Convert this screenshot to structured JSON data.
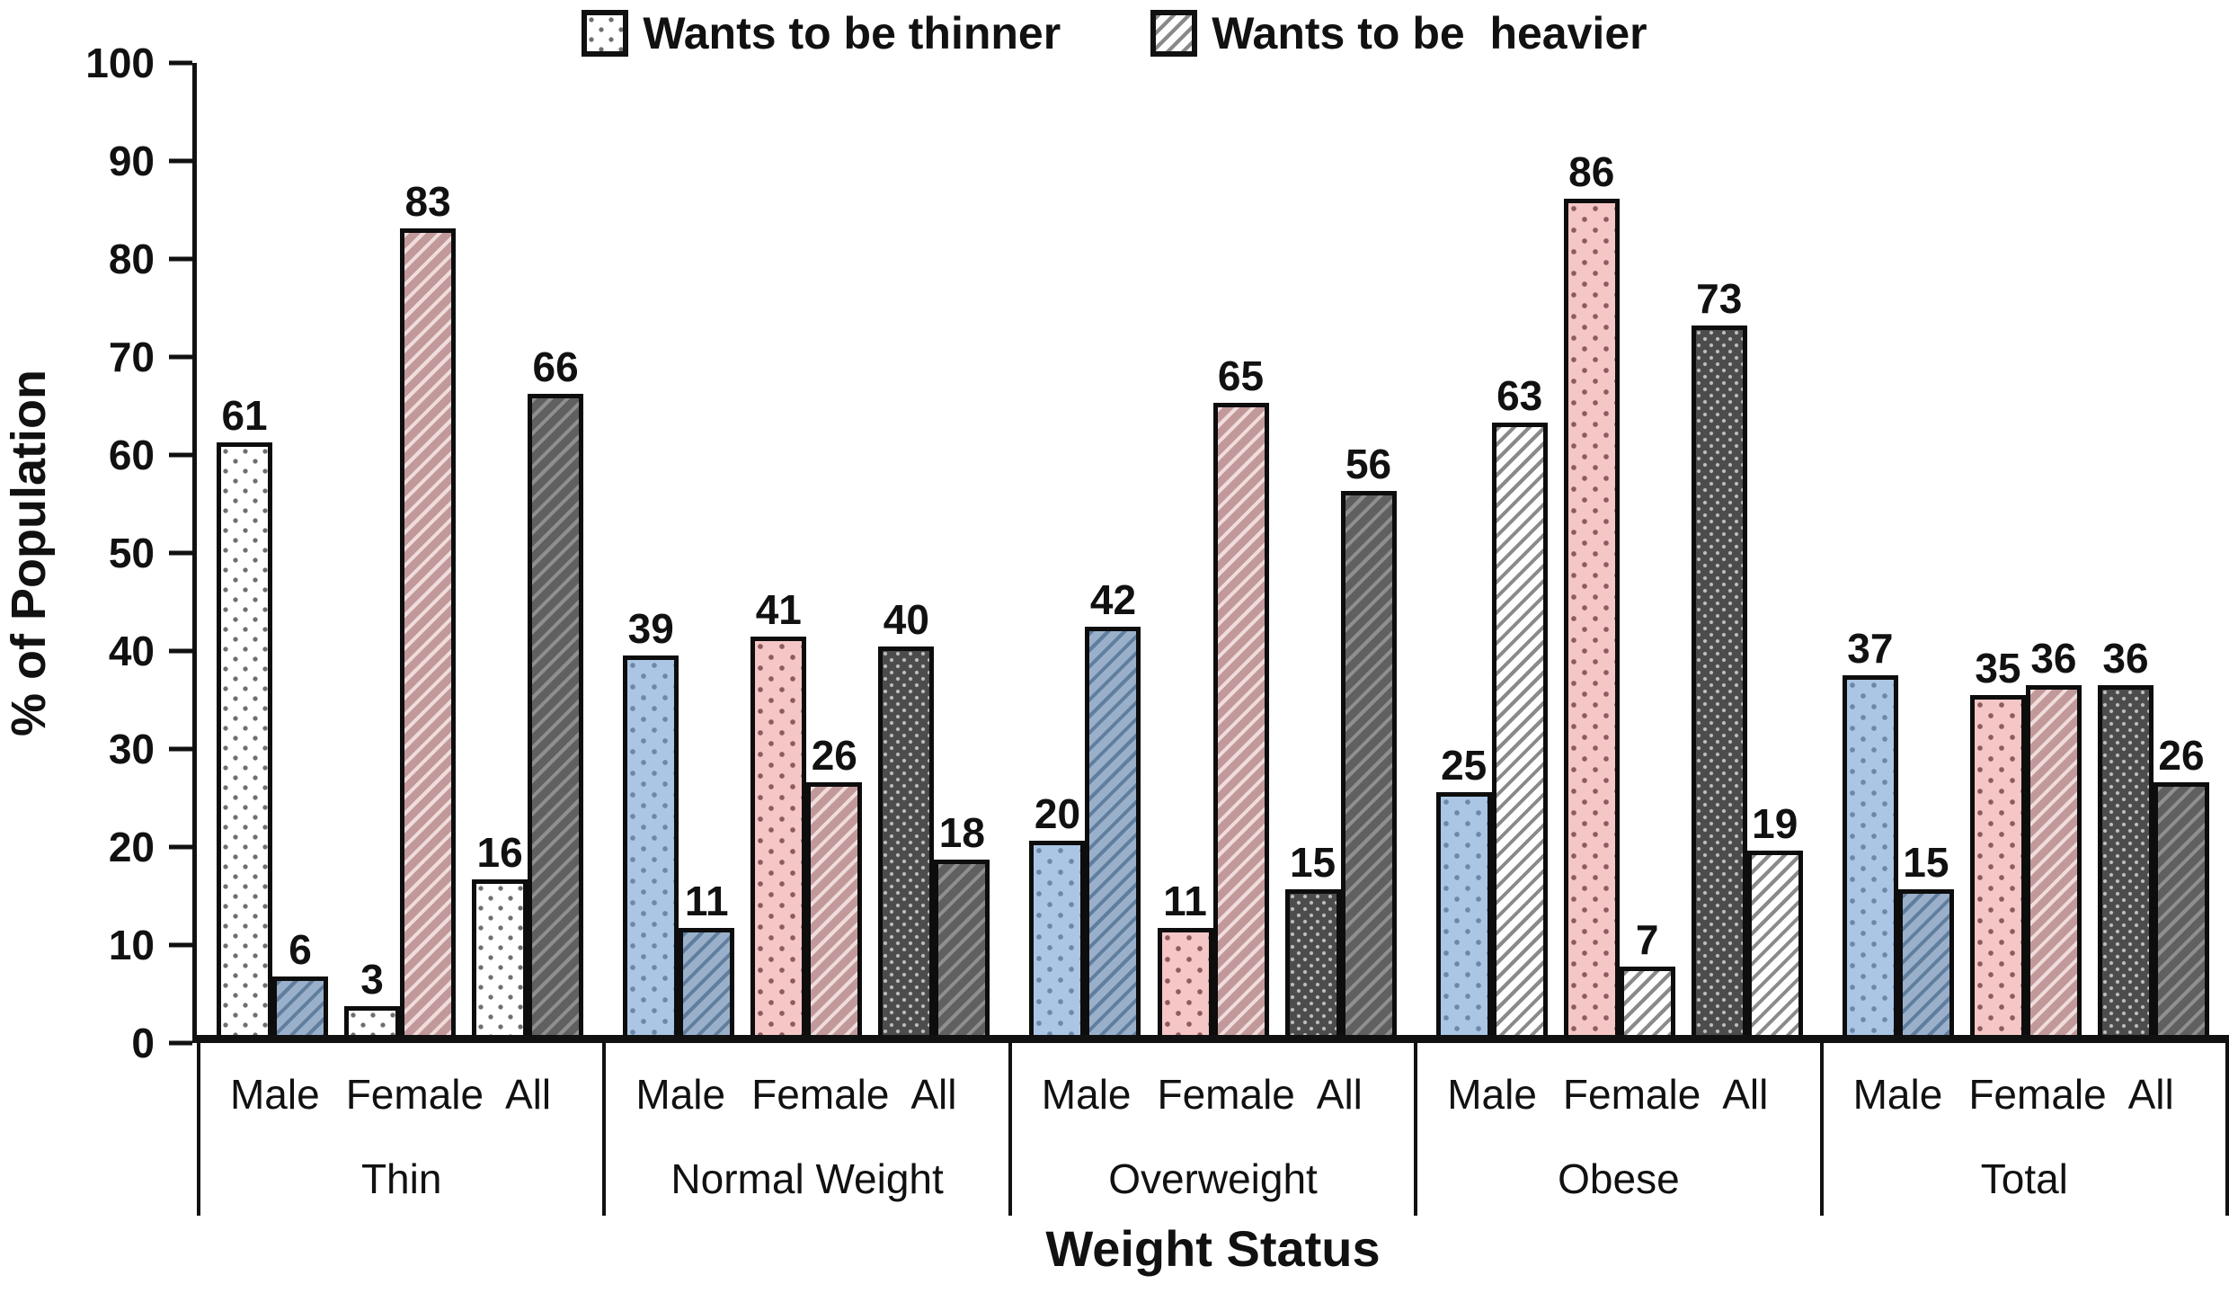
{
  "legend": {
    "thinner_label": "Wants to be thinner",
    "heavier_label": "Wants to be  heavier"
  },
  "y_axis": {
    "label": "% of Population",
    "ticks": [
      0,
      10,
      20,
      30,
      40,
      50,
      60,
      70,
      80,
      90,
      100
    ]
  },
  "x_axis": {
    "label": "Weight Status",
    "sub_labels": [
      "Male",
      "Female",
      "All"
    ]
  },
  "palette": {
    "axis_color": "#111111",
    "white_fill": "#ffffff",
    "white_dot_color": "#6e6e6e",
    "white_hatch_line": "#8a8a8a",
    "blue_fill": "#aac6e4",
    "blue_dot_color": "#6d87a8",
    "blue_hatch_fill": "#9ab0ca",
    "blue_hatch_line": "#617e9e",
    "pink_fill": "#f5c6c6",
    "pink_dot_color": "#8d5a60",
    "pink_hatch_fill": "#c2999b",
    "pink_hatch_line": "#f0dcdc",
    "dark_fill": "#4c4c4c",
    "dark_dot_color": "#c0c0c0",
    "dark_hatch_fill": "#606060",
    "dark_hatch_line": "#8f8f8f"
  },
  "chart_data": {
    "type": "bar",
    "title": "",
    "xlabel": "Weight Status",
    "ylabel": "% of Population",
    "ylim": [
      0,
      100
    ],
    "yticks": [
      0,
      10,
      20,
      30,
      40,
      50,
      60,
      70,
      80,
      90,
      100
    ],
    "grid": false,
    "legend_position": "top-center",
    "legend": [
      "Wants to be thinner",
      "Wants to be  heavier"
    ],
    "groups": [
      {
        "label": "Thin",
        "subgroups": [
          {
            "label": "Male",
            "thinner": {
              "value": 61,
              "style": "white-dot"
            },
            "heavier": {
              "value": 6,
              "style": "blue-hatch"
            }
          },
          {
            "label": "Female",
            "thinner": {
              "value": 3,
              "style": "white-dot"
            },
            "heavier": {
              "value": 83,
              "style": "pink-hatch"
            }
          },
          {
            "label": "All",
            "thinner": {
              "value": 16,
              "style": "white-dot"
            },
            "heavier": {
              "value": 66,
              "style": "dark-hatch"
            }
          }
        ]
      },
      {
        "label": "Normal Weight",
        "subgroups": [
          {
            "label": "Male",
            "thinner": {
              "value": 39,
              "style": "blue-dot"
            },
            "heavier": {
              "value": 11,
              "style": "blue-hatch"
            }
          },
          {
            "label": "Female",
            "thinner": {
              "value": 41,
              "style": "pink-dot"
            },
            "heavier": {
              "value": 26,
              "style": "pink-hatch"
            }
          },
          {
            "label": "All",
            "thinner": {
              "value": 40,
              "style": "dark-dot"
            },
            "heavier": {
              "value": 18,
              "style": "dark-hatch"
            }
          }
        ]
      },
      {
        "label": "Overweight",
        "subgroups": [
          {
            "label": "Male",
            "thinner": {
              "value": 20,
              "style": "blue-dot"
            },
            "heavier": {
              "value": 42,
              "style": "blue-hatch"
            }
          },
          {
            "label": "Female",
            "thinner": {
              "value": 11,
              "style": "pink-dot"
            },
            "heavier": {
              "value": 65,
              "style": "pink-hatch"
            }
          },
          {
            "label": "All",
            "thinner": {
              "value": 15,
              "style": "dark-dot"
            },
            "heavier": {
              "value": 56,
              "style": "dark-hatch"
            }
          }
        ]
      },
      {
        "label": "Obese",
        "subgroups": [
          {
            "label": "Male",
            "thinner": {
              "value": 25,
              "style": "blue-dot"
            },
            "heavier": {
              "value": 63,
              "style": "white-hatch"
            }
          },
          {
            "label": "Female",
            "thinner": {
              "value": 86,
              "style": "pink-dot"
            },
            "heavier": {
              "value": 7,
              "style": "white-hatch"
            }
          },
          {
            "label": "All",
            "thinner": {
              "value": 73,
              "style": "dark-dot"
            },
            "heavier": {
              "value": 19,
              "style": "white-hatch"
            }
          }
        ]
      },
      {
        "label": "Total",
        "subgroups": [
          {
            "label": "Male",
            "thinner": {
              "value": 37,
              "style": "blue-dot"
            },
            "heavier": {
              "value": 15,
              "style": "blue-hatch"
            }
          },
          {
            "label": "Female",
            "thinner": {
              "value": 35,
              "style": "pink-dot"
            },
            "heavier": {
              "value": 36,
              "style": "pink-hatch"
            }
          },
          {
            "label": "All",
            "thinner": {
              "value": 36,
              "style": "dark-dot"
            },
            "heavier": {
              "value": 26,
              "style": "dark-hatch"
            }
          }
        ]
      }
    ]
  }
}
